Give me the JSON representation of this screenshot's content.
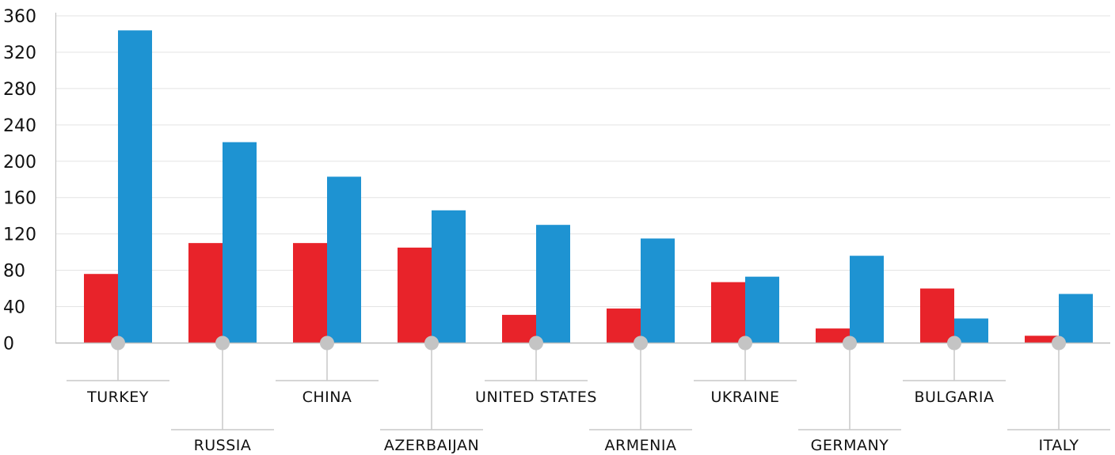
{
  "chart_data": {
    "type": "bar",
    "categories": [
      "TURKEY",
      "RUSSIA",
      "CHINA",
      "AZERBAIJAN",
      "UNITED STATES",
      "ARMENIA",
      "UKRAINE",
      "GERMANY",
      "BULGARIA",
      "ITALY"
    ],
    "series": [
      {
        "values": [
          76,
          110,
          110,
          105,
          31,
          38,
          67,
          16,
          60,
          8
        ],
        "color": "#e8232a"
      },
      {
        "values": [
          344,
          221,
          183,
          146,
          130,
          115,
          73,
          96,
          27,
          54
        ],
        "color": "#1e93d2"
      }
    ],
    "yticks": [
      "0",
      "40",
      "80",
      "120",
      "160",
      "200",
      "240",
      "280",
      "320",
      "360"
    ],
    "ylim": [
      0,
      360
    ],
    "grid": true,
    "legend": "none",
    "label_rows": "alternating",
    "colors": {
      "grid": "#e3e3e3",
      "axis": "#bdbdbd",
      "leader": "#c8c8c8",
      "marker": "#c4c4c4"
    }
  }
}
